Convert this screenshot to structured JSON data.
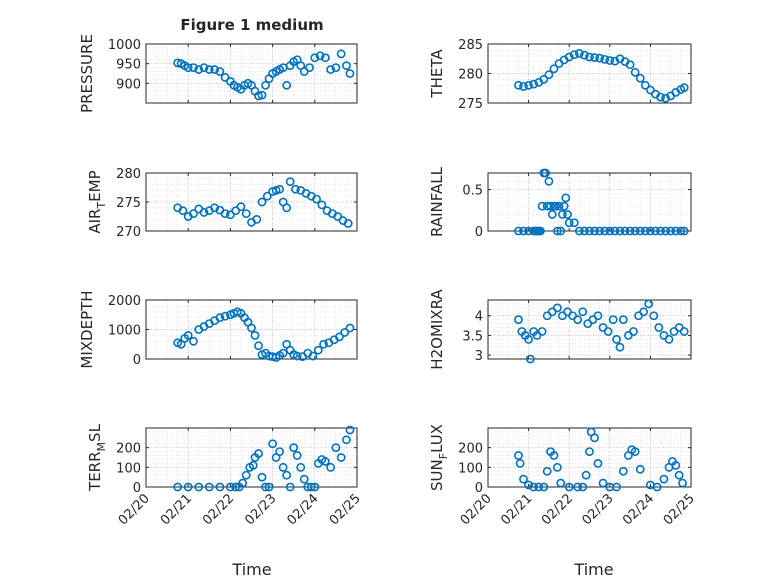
{
  "figure": {
    "title": "Figure 1 medium",
    "xlabel": "Time",
    "x_ticks": [
      "02/20",
      "02/21",
      "02/22",
      "02/23",
      "02/24",
      "02/25"
    ]
  },
  "colors": {
    "marker": "#0072BD",
    "axes": "#262626",
    "grid": "#b0b0b0",
    "background": "#ffffff"
  },
  "chart_data": [
    {
      "type": "scatter",
      "marker": "open-circle",
      "ylabel": "PRESSURE",
      "ylim": [
        850,
        1000
      ],
      "yticks": [
        900,
        950,
        1000
      ],
      "grid": true,
      "minor_grid": true,
      "xlim": [
        "02/20",
        "02/25"
      ],
      "x": [
        "02/20 18:00",
        "02/20 20:00",
        "02/20 22:00",
        "02/21 00:00",
        "02/21 03:00",
        "02/21 06:00",
        "02/21 09:00",
        "02/21 12:00",
        "02/21 15:00",
        "02/21 18:00",
        "02/21 21:00",
        "02/22 00:00",
        "02/22 02:00",
        "02/22 04:00",
        "02/22 06:00",
        "02/22 08:00",
        "02/22 10:00",
        "02/22 12:00",
        "02/22 14:00",
        "02/22 16:00",
        "02/22 18:00",
        "02/22 20:00",
        "02/22 22:00",
        "02/23 00:00",
        "02/23 02:00",
        "02/23 04:00",
        "02/23 06:00",
        "02/23 08:00",
        "02/23 10:00",
        "02/23 12:00",
        "02/23 14:00",
        "02/23 16:00",
        "02/23 18:00",
        "02/23 21:00",
        "02/24 00:00",
        "02/24 03:00",
        "02/24 06:00",
        "02/24 09:00",
        "02/24 12:00",
        "02/24 15:00",
        "02/24 18:00",
        "02/24 20:00"
      ],
      "y": [
        952,
        950,
        945,
        940,
        940,
        935,
        940,
        935,
        935,
        930,
        915,
        905,
        895,
        890,
        885,
        895,
        900,
        895,
        880,
        868,
        870,
        895,
        912,
        925,
        930,
        935,
        940,
        895,
        945,
        955,
        960,
        945,
        930,
        940,
        965,
        970,
        965,
        935,
        940,
        975,
        945,
        925
      ]
    },
    {
      "type": "scatter",
      "marker": "open-circle",
      "ylabel": "THETA",
      "ylim": [
        275,
        285
      ],
      "yticks": [
        275,
        280,
        285
      ],
      "grid": true,
      "minor_grid": true,
      "xlim": [
        "02/20",
        "02/25"
      ],
      "x": [
        "02/20 18:00",
        "02/20 21:00",
        "02/21 00:00",
        "02/21 03:00",
        "02/21 06:00",
        "02/21 09:00",
        "02/21 12:00",
        "02/21 15:00",
        "02/21 18:00",
        "02/21 21:00",
        "02/22 00:00",
        "02/22 03:00",
        "02/22 06:00",
        "02/22 09:00",
        "02/22 12:00",
        "02/22 15:00",
        "02/22 18:00",
        "02/22 21:00",
        "02/23 00:00",
        "02/23 03:00",
        "02/23 06:00",
        "02/23 09:00",
        "02/23 12:00",
        "02/23 15:00",
        "02/23 18:00",
        "02/23 21:00",
        "02/24 00:00",
        "02/24 03:00",
        "02/24 06:00",
        "02/24 09:00",
        "02/24 12:00",
        "02/24 15:00",
        "02/24 18:00",
        "02/24 20:00"
      ],
      "y": [
        278,
        277.8,
        278,
        278.2,
        278.5,
        279,
        279.8,
        280.8,
        281.7,
        282.3,
        282.8,
        283.2,
        283.4,
        283.1,
        282.8,
        282.7,
        282.6,
        282.4,
        282.2,
        282.1,
        282.5,
        282,
        281.5,
        280.2,
        279.2,
        278,
        277.2,
        276.5,
        276,
        275.8,
        276.2,
        276.8,
        277.3,
        277.6
      ]
    },
    {
      "type": "scatter",
      "marker": "open-circle",
      "ylabel": "AIR_TEMP",
      "ylim": [
        270,
        280
      ],
      "yticks": [
        270,
        275,
        280
      ],
      "grid": true,
      "minor_grid": true,
      "xlim": [
        "02/20",
        "02/25"
      ],
      "x": [
        "02/20 18:00",
        "02/20 21:00",
        "02/21 00:00",
        "02/21 03:00",
        "02/21 06:00",
        "02/21 09:00",
        "02/21 12:00",
        "02/21 15:00",
        "02/21 18:00",
        "02/21 21:00",
        "02/22 00:00",
        "02/22 03:00",
        "02/22 06:00",
        "02/22 09:00",
        "02/22 12:00",
        "02/22 15:00",
        "02/22 18:00",
        "02/22 21:00",
        "02/23 00:00",
        "02/23 02:00",
        "02/23 04:00",
        "02/23 06:00",
        "02/23 08:00",
        "02/23 10:00",
        "02/23 13:00",
        "02/23 16:00",
        "02/23 19:00",
        "02/23 22:00",
        "02/24 01:00",
        "02/24 04:00",
        "02/24 07:00",
        "02/24 10:00",
        "02/24 13:00",
        "02/24 16:00",
        "02/24 19:00"
      ],
      "y": [
        274,
        273.5,
        272.5,
        273,
        273.8,
        273.2,
        273.5,
        274,
        273.6,
        273,
        272.8,
        273.5,
        274.2,
        273,
        271.5,
        272,
        275,
        276,
        276.8,
        277,
        277.2,
        275,
        274,
        278.5,
        277.2,
        277,
        276.5,
        276,
        275.5,
        274.5,
        273.5,
        273,
        272.5,
        271.8,
        271.3
      ]
    },
    {
      "type": "scatter",
      "marker": "open-circle",
      "ylabel": "RAINFALL",
      "ylim": [
        0,
        0.7
      ],
      "yticks": [
        0,
        0.5
      ],
      "grid": true,
      "minor_grid": true,
      "xlim": [
        "02/20",
        "02/25"
      ],
      "x": [
        "02/20 18:00",
        "02/20 21:00",
        "02/21 00:00",
        "02/21 03:00",
        "02/21 04:00",
        "02/21 05:00",
        "02/21 06:00",
        "02/21 07:00",
        "02/21 08:00",
        "02/21 09:00",
        "02/21 10:00",
        "02/21 11:00",
        "02/21 12:00",
        "02/21 13:00",
        "02/21 14:00",
        "02/21 15:00",
        "02/21 16:00",
        "02/21 17:00",
        "02/21 18:00",
        "02/21 19:00",
        "02/21 20:00",
        "02/21 21:00",
        "02/21 22:00",
        "02/21 23:00",
        "02/22 00:00",
        "02/22 03:00",
        "02/22 06:00",
        "02/22 09:00",
        "02/22 12:00",
        "02/22 15:00",
        "02/22 18:00",
        "02/22 21:00",
        "02/23 00:00",
        "02/23 03:00",
        "02/23 06:00",
        "02/23 09:00",
        "02/23 12:00",
        "02/23 15:00",
        "02/23 18:00",
        "02/23 21:00",
        "02/24 00:00",
        "02/24 03:00",
        "02/24 06:00",
        "02/24 09:00",
        "02/24 12:00",
        "02/24 15:00",
        "02/24 18:00",
        "02/24 20:00"
      ],
      "y": [
        0,
        0,
        0,
        0,
        0,
        0,
        0,
        0,
        0.3,
        0.7,
        0.7,
        0.3,
        0.6,
        0.3,
        0.2,
        0.3,
        0.3,
        0,
        0.3,
        0,
        0.2,
        0.3,
        0.4,
        0.2,
        0.1,
        0.1,
        0,
        0,
        0,
        0,
        0,
        0,
        0,
        0,
        0,
        0,
        0,
        0,
        0,
        0,
        0,
        0,
        0,
        0,
        0,
        0,
        0,
        0
      ]
    },
    {
      "type": "scatter",
      "marker": "open-circle",
      "ylabel": "MIXDEPTH",
      "ylim": [
        0,
        2000
      ],
      "yticks": [
        0,
        1000,
        2000
      ],
      "grid": true,
      "minor_grid": true,
      "xlim": [
        "02/20",
        "02/25"
      ],
      "x": [
        "02/20 18:00",
        "02/20 20:00",
        "02/20 22:00",
        "02/21 00:00",
        "02/21 03:00",
        "02/21 06:00",
        "02/21 09:00",
        "02/21 12:00",
        "02/21 15:00",
        "02/21 18:00",
        "02/21 21:00",
        "02/22 00:00",
        "02/22 02:00",
        "02/22 04:00",
        "02/22 06:00",
        "02/22 08:00",
        "02/22 10:00",
        "02/22 12:00",
        "02/22 14:00",
        "02/22 16:00",
        "02/22 18:00",
        "02/22 20:00",
        "02/22 22:00",
        "02/23 00:00",
        "02/23 02:00",
        "02/23 04:00",
        "02/23 06:00",
        "02/23 08:00",
        "02/23 10:00",
        "02/23 12:00",
        "02/23 14:00",
        "02/23 17:00",
        "02/23 20:00",
        "02/23 23:00",
        "02/24 02:00",
        "02/24 05:00",
        "02/24 08:00",
        "02/24 11:00",
        "02/24 14:00",
        "02/24 17:00",
        "02/24 20:00"
      ],
      "y": [
        550,
        500,
        700,
        800,
        600,
        1000,
        1100,
        1200,
        1300,
        1400,
        1450,
        1500,
        1550,
        1600,
        1550,
        1400,
        1250,
        1050,
        800,
        450,
        150,
        200,
        100,
        80,
        50,
        120,
        200,
        500,
        300,
        150,
        100,
        80,
        200,
        100,
        300,
        500,
        550,
        650,
        750,
        900,
        1050
      ]
    },
    {
      "type": "scatter",
      "marker": "open-circle",
      "ylabel": "H2OMIXRA",
      "ylim": [
        2.9,
        4.4
      ],
      "yticks": [
        3,
        3.5,
        4
      ],
      "grid": true,
      "minor_grid": true,
      "xlim": [
        "02/20",
        "02/25"
      ],
      "x": [
        "02/20 18:00",
        "02/20 20:00",
        "02/20 22:00",
        "02/21 00:00",
        "02/21 01:00",
        "02/21 03:00",
        "02/21 05:00",
        "02/21 08:00",
        "02/21 11:00",
        "02/21 14:00",
        "02/21 17:00",
        "02/21 20:00",
        "02/21 23:00",
        "02/22 02:00",
        "02/22 05:00",
        "02/22 08:00",
        "02/22 11:00",
        "02/22 14:00",
        "02/22 17:00",
        "02/22 20:00",
        "02/22 23:00",
        "02/23 02:00",
        "02/23 04:00",
        "02/23 06:00",
        "02/23 08:00",
        "02/23 11:00",
        "02/23 14:00",
        "02/23 17:00",
        "02/23 20:00",
        "02/23 23:00",
        "02/24 02:00",
        "02/24 05:00",
        "02/24 08:00",
        "02/24 11:00",
        "02/24 14:00",
        "02/24 17:00",
        "02/24 20:00"
      ],
      "y": [
        3.9,
        3.6,
        3.5,
        3.4,
        2.9,
        3.6,
        3.5,
        3.6,
        4.0,
        4.1,
        4.2,
        4.0,
        4.1,
        4.0,
        3.9,
        4.1,
        3.8,
        3.9,
        4.0,
        3.7,
        3.6,
        3.9,
        3.4,
        3.2,
        3.9,
        3.5,
        3.6,
        4.0,
        4.1,
        4.3,
        4.0,
        3.7,
        3.5,
        3.4,
        3.6,
        3.7,
        3.6
      ]
    },
    {
      "type": "scatter",
      "marker": "open-circle",
      "ylabel": "TERR_MSL",
      "ylim": [
        0,
        300
      ],
      "yticks": [
        0,
        100,
        200
      ],
      "grid": true,
      "minor_grid": true,
      "xlim": [
        "02/20",
        "02/25"
      ],
      "x": [
        "02/20 18:00",
        "02/21 00:00",
        "02/21 06:00",
        "02/21 12:00",
        "02/21 18:00",
        "02/22 00:00",
        "02/22 03:00",
        "02/22 05:00",
        "02/22 07:00",
        "02/22 09:00",
        "02/22 11:00",
        "02/22 13:00",
        "02/22 14:00",
        "02/22 16:00",
        "02/22 18:00",
        "02/22 20:00",
        "02/22 22:00",
        "02/23 00:00",
        "02/23 02:00",
        "02/23 04:00",
        "02/23 06:00",
        "02/23 08:00",
        "02/23 10:00",
        "02/23 12:00",
        "02/23 14:00",
        "02/23 16:00",
        "02/23 18:00",
        "02/23 20:00",
        "02/23 22:00",
        "02/24 00:00",
        "02/24 02:00",
        "02/24 04:00",
        "02/24 06:00",
        "02/24 09:00",
        "02/24 12:00",
        "02/24 15:00",
        "02/24 18:00",
        "02/24 20:00"
      ],
      "y": [
        0,
        0,
        0,
        0,
        0,
        0,
        0,
        0,
        20,
        60,
        100,
        110,
        150,
        170,
        50,
        0,
        0,
        220,
        150,
        180,
        100,
        60,
        0,
        200,
        160,
        100,
        40,
        0,
        0,
        0,
        120,
        140,
        130,
        100,
        200,
        150,
        240,
        290
      ]
    },
    {
      "type": "scatter",
      "marker": "open-circle",
      "ylabel": "SUN_FLUX",
      "ylim": [
        0,
        300
      ],
      "yticks": [
        0,
        100,
        200
      ],
      "grid": true,
      "minor_grid": true,
      "xlim": [
        "02/20",
        "02/25"
      ],
      "x": [
        "02/20 18:00",
        "02/20 19:00",
        "02/20 21:00",
        "02/21 00:00",
        "02/21 03:00",
        "02/21 06:00",
        "02/21 09:00",
        "02/21 11:00",
        "02/21 13:00",
        "02/21 15:00",
        "02/21 17:00",
        "02/21 19:00",
        "02/22 00:00",
        "02/22 05:00",
        "02/22 08:00",
        "02/22 10:00",
        "02/22 12:00",
        "02/22 13:00",
        "02/22 15:00",
        "02/22 17:00",
        "02/22 20:00",
        "02/23 00:00",
        "02/23 04:00",
        "02/23 08:00",
        "02/23 11:00",
        "02/23 13:00",
        "02/23 15:00",
        "02/23 18:00",
        "02/24 00:00",
        "02/24 04:00",
        "02/24 08:00",
        "02/24 11:00",
        "02/24 13:00",
        "02/24 15:00",
        "02/24 17:00",
        "02/24 19:00"
      ],
      "y": [
        160,
        120,
        40,
        10,
        0,
        0,
        0,
        80,
        180,
        160,
        100,
        20,
        0,
        0,
        0,
        60,
        180,
        280,
        250,
        120,
        20,
        0,
        0,
        80,
        160,
        190,
        180,
        90,
        10,
        0,
        40,
        100,
        130,
        110,
        60,
        20
      ]
    }
  ]
}
